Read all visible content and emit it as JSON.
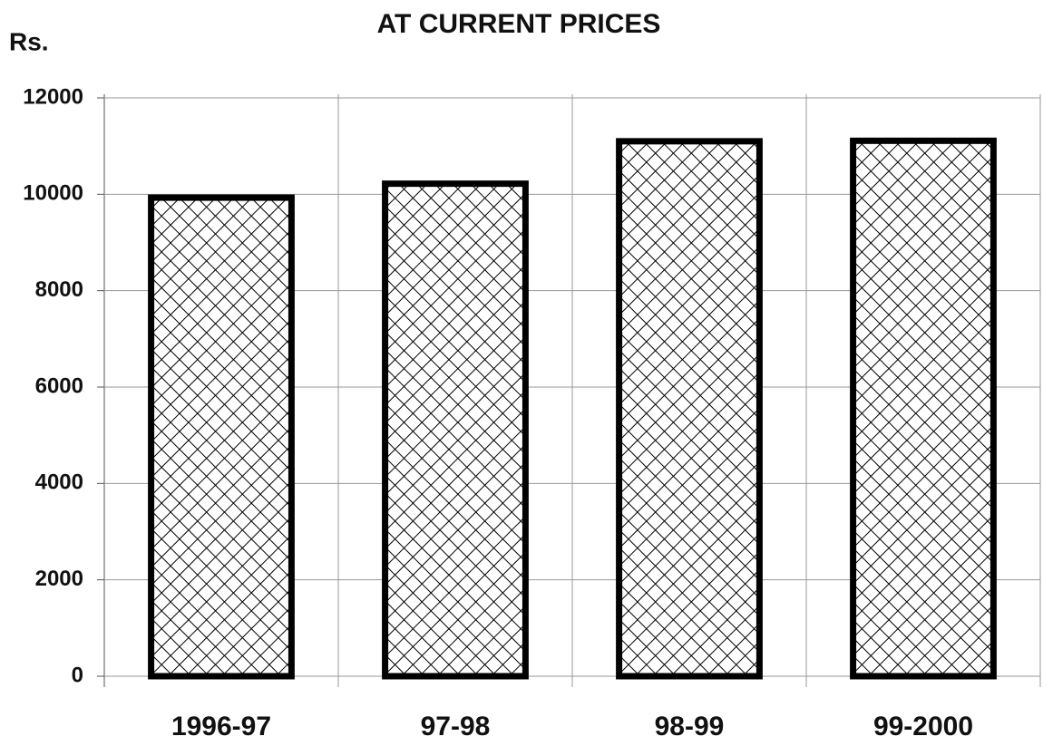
{
  "chart_data": {
    "type": "bar",
    "title": "AT CURRENT PRICES",
    "y_label": "Rs.",
    "categories": [
      "1996-97",
      "97-98",
      "98-99",
      "99-2000"
    ],
    "values": [
      9930,
      10220,
      11100,
      11110
    ],
    "color": "#000000",
    "ylim": [
      0,
      12000
    ],
    "yticks": [
      0,
      2000,
      4000,
      6000,
      8000,
      10000,
      12000
    ],
    "grid": true
  }
}
